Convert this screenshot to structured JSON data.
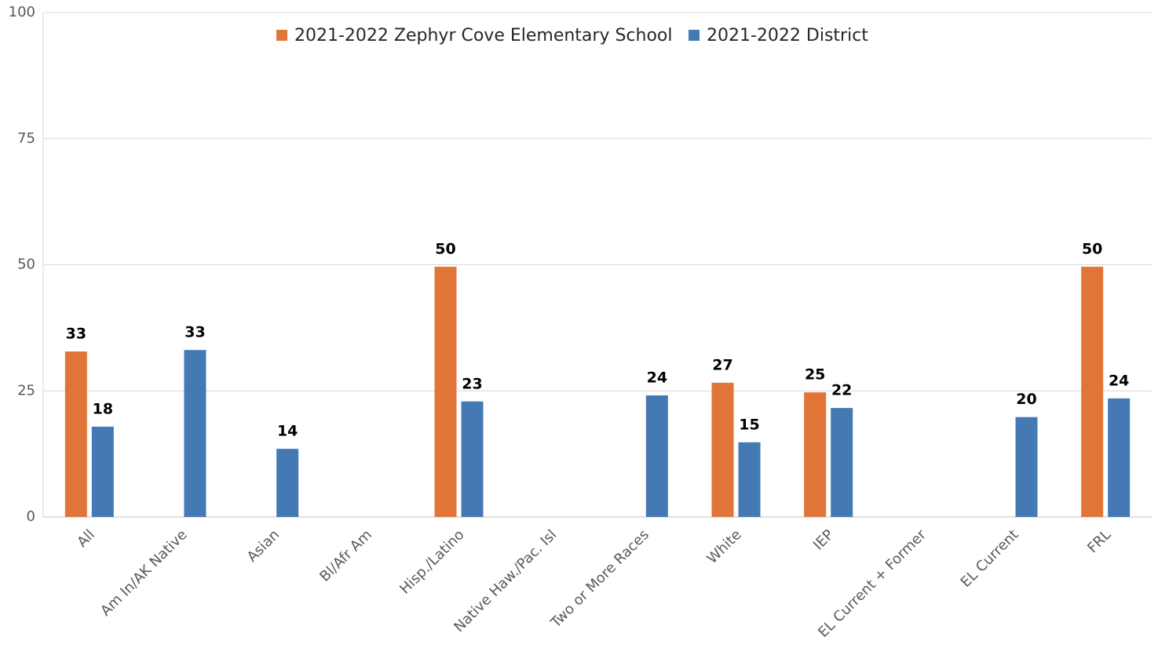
{
  "chart_data": {
    "type": "bar",
    "categories": [
      "All",
      "Am In/AK Native",
      "Asian",
      "Bl/Afr Am",
      "Hisp./Latino",
      "Native Haw./Pac. Isl",
      "Two or More Races",
      "White",
      "IEP",
      "EL Current + Former",
      "EL Current",
      "FRL"
    ],
    "series": [
      {
        "name": "2021-2022 Zephyr Cove Elementary School",
        "color": "#e07537",
        "values": [
          32.8,
          null,
          null,
          null,
          49.6,
          null,
          null,
          26.6,
          24.7,
          null,
          null,
          49.6
        ],
        "value_labels": [
          "33",
          null,
          null,
          null,
          "50",
          null,
          null,
          "27",
          "25",
          null,
          null,
          "50"
        ]
      },
      {
        "name": "2021-2022 District",
        "color": "#4479b4",
        "values": [
          17.9,
          33.1,
          13.5,
          null,
          22.9,
          null,
          24.1,
          14.8,
          21.6,
          null,
          19.8,
          23.5
        ],
        "value_labels": [
          "18",
          "33",
          "14",
          null,
          "23",
          null,
          "24",
          "15",
          "22",
          null,
          "20",
          "24"
        ]
      }
    ],
    "ylim": [
      0,
      100
    ],
    "yticks": [
      0,
      25,
      50,
      75,
      100
    ],
    "grid": true,
    "legend": "top"
  }
}
